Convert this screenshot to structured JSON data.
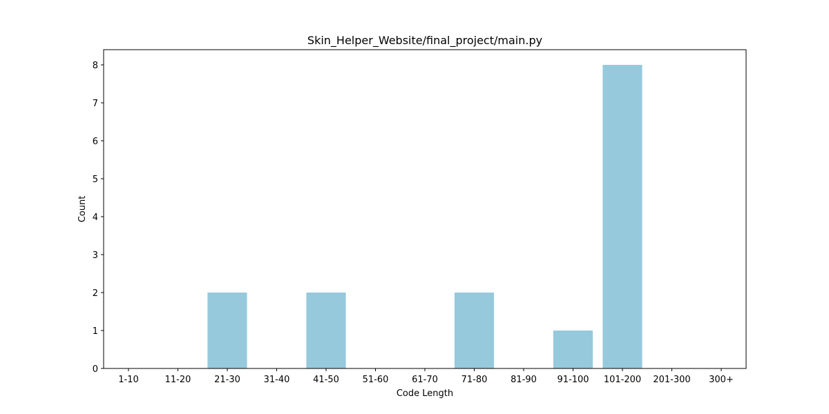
{
  "chart_data": {
    "type": "bar",
    "title": "Skin_Helper_Website/final_project/main.py",
    "xlabel": "Code Length",
    "ylabel": "Count",
    "categories": [
      "1-10",
      "11-20",
      "21-30",
      "31-40",
      "41-50",
      "51-60",
      "61-70",
      "71-80",
      "81-90",
      "91-100",
      "101-200",
      "201-300",
      "300+"
    ],
    "values": [
      0,
      0,
      2,
      0,
      2,
      0,
      0,
      2,
      0,
      1,
      8,
      0,
      0
    ],
    "ylim": [
      0,
      8.4
    ],
    "yticks": [
      "0",
      "1",
      "2",
      "3",
      "4",
      "5",
      "6",
      "7",
      "8"
    ],
    "bar_color": "#96c9dc",
    "grid": false,
    "legend": "none"
  }
}
